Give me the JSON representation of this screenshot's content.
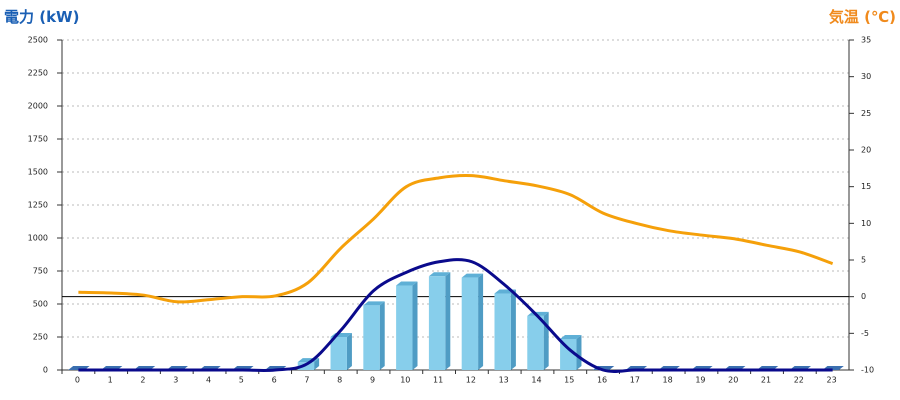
{
  "chart_data": {
    "type": "bar",
    "title": "電力 (kW)",
    "y2_title": "気温 (℃)",
    "categories": [
      "0",
      "1",
      "2",
      "3",
      "4",
      "5",
      "6",
      "7",
      "8",
      "9",
      "10",
      "11",
      "12",
      "13",
      "14",
      "15",
      "16",
      "17",
      "18",
      "19",
      "20",
      "21",
      "22",
      "23"
    ],
    "series": [
      {
        "type": "bar",
        "color": "#87ceeb",
        "values": [
          0,
          0,
          0,
          0,
          0,
          0,
          0,
          60,
          250,
          490,
          640,
          710,
          700,
          580,
          410,
          235,
          0,
          0,
          0,
          0,
          0,
          0,
          0,
          0
        ]
      },
      {
        "type": "line",
        "color": "#0a0a8c",
        "values": [
          0,
          0,
          0,
          0,
          0,
          0,
          0,
          50,
          300,
          600,
          740,
          820,
          820,
          645,
          410,
          150,
          0,
          0,
          0,
          0,
          0,
          0,
          0,
          0
        ]
      },
      {
        "type": "line",
        "axis": "y2",
        "color": "#f5a00a",
        "values": [
          0.6,
          0.5,
          0.2,
          -0.7,
          -0.4,
          0,
          0.1,
          1.9,
          6.6,
          10.6,
          15,
          16.2,
          16.5,
          15.8,
          15.1,
          13.9,
          11.4,
          10,
          9,
          8.4,
          7.9,
          7,
          6.1,
          4.5
        ]
      }
    ],
    "ylim": [
      0,
      2500
    ],
    "yticks": [
      0,
      250,
      500,
      750,
      1000,
      1250,
      1500,
      1750,
      2000,
      2250,
      2500
    ],
    "y2lim": [
      -10,
      35
    ],
    "y2ticks": [
      -10,
      -5,
      0,
      5,
      10,
      15,
      20,
      25,
      30,
      35
    ],
    "grid": true
  }
}
